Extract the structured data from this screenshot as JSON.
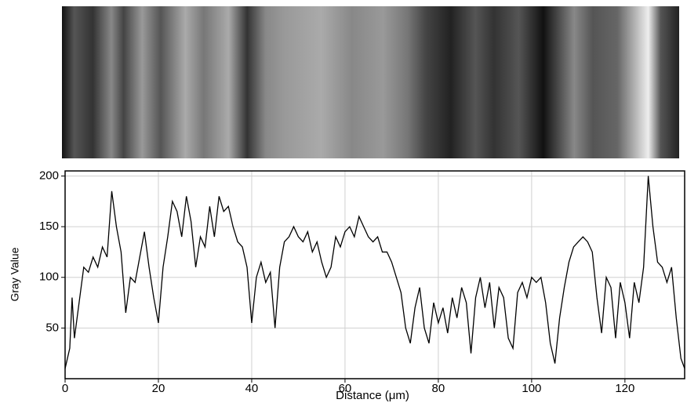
{
  "chart_data": {
    "type": "line",
    "x_label": "Distance (μm)",
    "y_label": "Gray Value",
    "x": [
      0,
      1,
      1.5,
      2,
      3,
      4,
      5,
      6,
      7,
      8,
      9,
      10,
      11,
      12,
      13,
      14,
      15,
      16,
      17,
      18,
      19,
      20,
      21,
      22,
      23,
      24,
      25,
      26,
      27,
      28,
      29,
      30,
      31,
      32,
      33,
      34,
      35,
      36,
      37,
      38,
      39,
      40,
      41,
      42,
      43,
      44,
      45,
      46,
      47,
      48,
      49,
      50,
      51,
      52,
      53,
      54,
      55,
      56,
      57,
      58,
      59,
      60,
      61,
      62,
      63,
      64,
      65,
      66,
      67,
      68,
      69,
      70,
      71,
      72,
      73,
      74,
      75,
      76,
      77,
      78,
      79,
      80,
      81,
      82,
      83,
      84,
      85,
      86,
      87,
      88,
      89,
      90,
      91,
      92,
      93,
      94,
      95,
      96,
      97,
      98,
      99,
      100,
      101,
      102,
      103,
      104,
      105,
      106,
      107,
      108,
      109,
      110,
      111,
      112,
      113,
      114,
      115,
      116,
      117,
      118,
      119,
      120,
      121,
      122,
      123,
      124,
      125,
      126,
      127,
      128,
      129,
      130,
      131,
      132,
      132.8
    ],
    "series": [
      {
        "color": "#000000",
        "values": [
          10,
          30,
          80,
          40,
          75,
          110,
          105,
          120,
          110,
          130,
          120,
          185,
          150,
          125,
          65,
          100,
          95,
          120,
          145,
          110,
          80,
          55,
          110,
          140,
          175,
          165,
          140,
          180,
          155,
          110,
          140,
          130,
          170,
          140,
          180,
          165,
          170,
          150,
          135,
          130,
          110,
          55,
          100,
          115,
          95,
          105,
          50,
          110,
          135,
          140,
          150,
          140,
          135,
          145,
          125,
          135,
          115,
          100,
          110,
          140,
          130,
          145,
          150,
          140,
          160,
          150,
          140,
          135,
          140,
          125,
          125,
          115,
          100,
          85,
          50,
          35,
          70,
          90,
          50,
          35,
          75,
          55,
          70,
          45,
          80,
          60,
          90,
          75,
          25,
          80,
          100,
          70,
          95,
          50,
          90,
          80,
          40,
          30,
          85,
          95,
          80,
          100,
          95,
          100,
          75,
          35,
          15,
          60,
          90,
          115,
          130,
          135,
          140,
          135,
          125,
          80,
          45,
          100,
          90,
          40,
          95,
          75,
          40,
          95,
          75,
          110,
          200,
          150,
          115,
          110,
          95,
          110,
          60,
          20,
          10
        ]
      }
    ],
    "xlim": [
      0,
      132.8
    ],
    "ylim": [
      0,
      205
    ],
    "xticks": [
      0,
      20,
      40,
      60,
      80,
      100,
      120
    ],
    "yticks": [
      50,
      100,
      150,
      200
    ],
    "grid": true
  }
}
